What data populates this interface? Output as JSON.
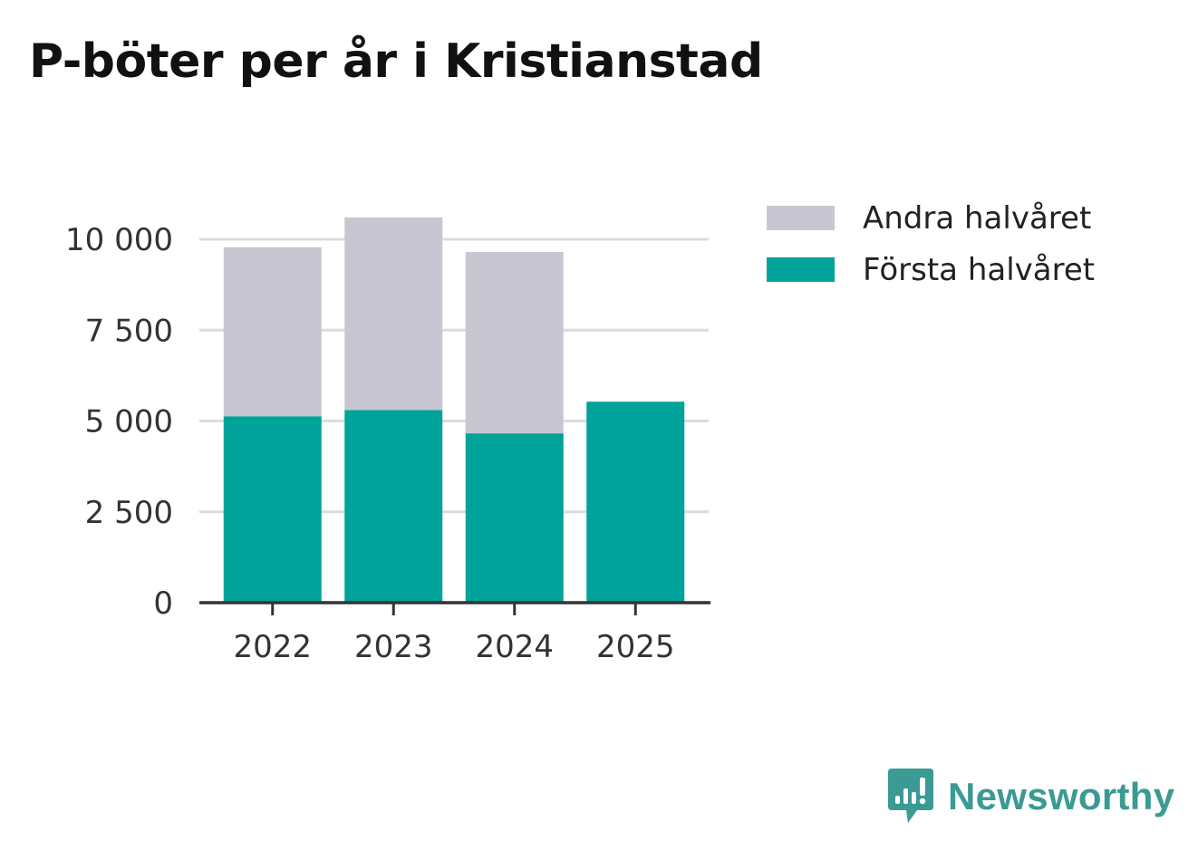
{
  "title": "P-böter per år i Kristianstad",
  "chart_data": {
    "type": "bar",
    "stacked": true,
    "title": "P-böter per år i Kristianstad",
    "xlabel": "",
    "ylabel": "",
    "categories": [
      "2022",
      "2023",
      "2024",
      "2025"
    ],
    "series": [
      {
        "name": "Första halvåret",
        "color": "#00a39a",
        "values": [
          5130,
          5300,
          4660,
          5530
        ]
      },
      {
        "name": "Andra halvåret",
        "color": "#c8c7d1",
        "values": [
          4650,
          5300,
          4990,
          0
        ]
      }
    ],
    "ylim": [
      0,
      10700
    ],
    "yticks": [
      0,
      2500,
      5000,
      7500,
      10000
    ],
    "ytick_labels": [
      "0",
      "2 500",
      "5 000",
      "7 500",
      "10 000"
    ],
    "grid": true,
    "legend_position": "top-right"
  },
  "legend": {
    "items": [
      {
        "label": "Andra halvåret",
        "color": "#c8c7d1"
      },
      {
        "label": "Första halvåret",
        "color": "#00a39a"
      }
    ]
  },
  "brand": {
    "name": "Newsworthy",
    "color": "#3b9a93"
  }
}
